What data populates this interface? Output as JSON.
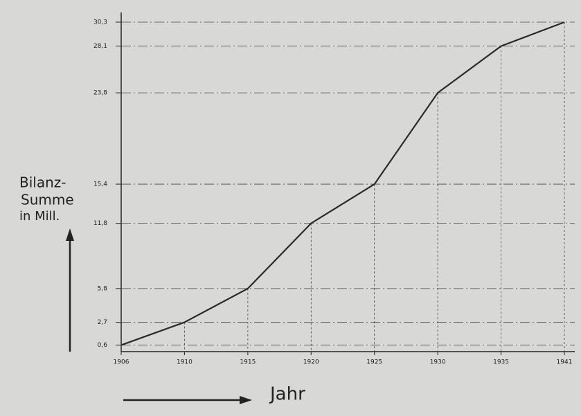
{
  "chart_data": {
    "type": "line",
    "ylabel": [
      "Bilanz-",
      "Summe",
      "in Mill."
    ],
    "xlabel": "Jahr",
    "categories": [
      "1906",
      "1910",
      "1915",
      "1920",
      "1925",
      "1930",
      "1935",
      "1941"
    ],
    "values": [
      0.6,
      2.7,
      5.8,
      11.8,
      15.4,
      23.8,
      28.1,
      30.3
    ],
    "color": "#2a2a2a",
    "ylim": [
      0,
      31
    ],
    "yticks": [
      {
        "value": 0.6,
        "label": "0,6"
      },
      {
        "value": 2.7,
        "label": "2,7"
      },
      {
        "value": 5.8,
        "label": "5,8"
      },
      {
        "value": 11.8,
        "label": "11,8"
      },
      {
        "value": 15.4,
        "label": "15,4"
      },
      {
        "value": 23.8,
        "label": "23,8"
      },
      {
        "value": 28.1,
        "label": "28,1"
      },
      {
        "value": 30.3,
        "label": "30,3"
      }
    ],
    "grid": true
  }
}
